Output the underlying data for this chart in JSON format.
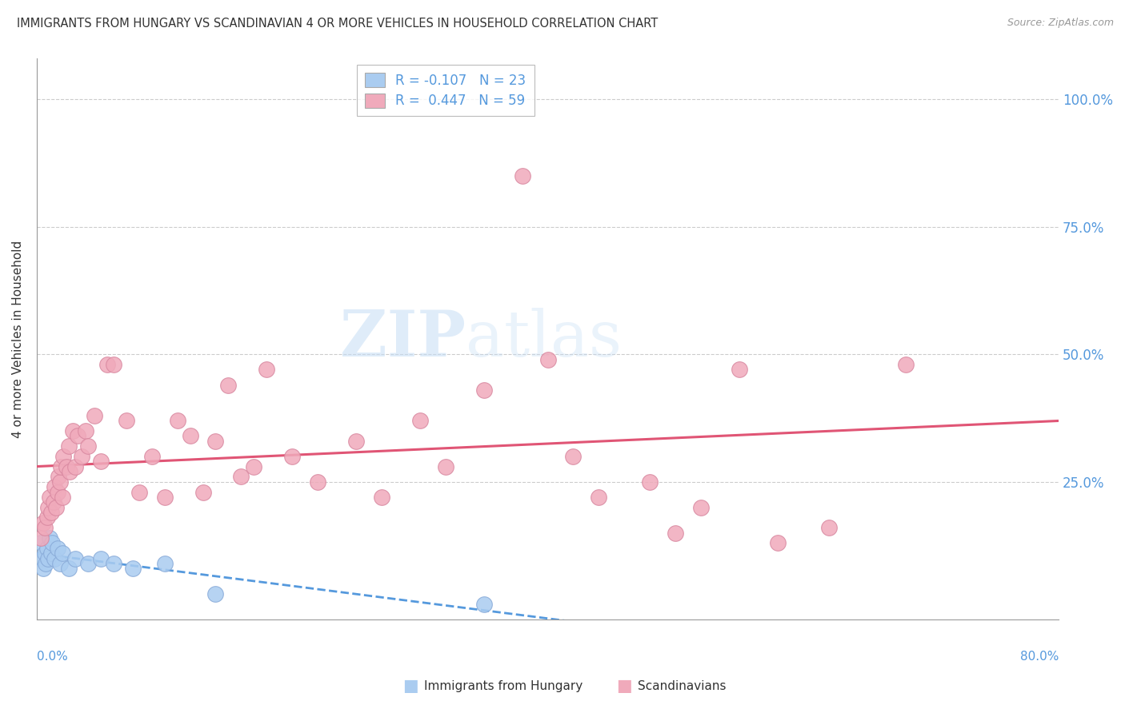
{
  "title": "IMMIGRANTS FROM HUNGARY VS SCANDINAVIAN 4 OR MORE VEHICLES IN HOUSEHOLD CORRELATION CHART",
  "source": "Source: ZipAtlas.com",
  "ylabel": "4 or more Vehicles in Household",
  "xlim": [
    0.0,
    80.0
  ],
  "ylim": [
    -2.0,
    108.0
  ],
  "watermark_zip": "ZIP",
  "watermark_atlas": "atlas",
  "hungary_color": "#aaccf0",
  "hungary_edge": "#88aad8",
  "scand_color": "#f0aabb",
  "scand_edge": "#d888a0",
  "hungary_line_color": "#5599dd",
  "scand_line_color": "#e05575",
  "hungary_x": [
    0.3,
    0.4,
    0.5,
    0.6,
    0.7,
    0.8,
    0.9,
    1.0,
    1.1,
    1.2,
    1.4,
    1.6,
    1.8,
    2.0,
    2.5,
    3.0,
    4.0,
    5.0,
    6.0,
    7.5,
    10.0,
    14.0,
    35.0
  ],
  "hungary_y": [
    13,
    10,
    8,
    11,
    9,
    12,
    10,
    14,
    11,
    13,
    10,
    12,
    9,
    11,
    8,
    10,
    9,
    10,
    9,
    8,
    9,
    3,
    1
  ],
  "scand_x": [
    0.3,
    0.5,
    0.6,
    0.8,
    0.9,
    1.0,
    1.1,
    1.3,
    1.4,
    1.5,
    1.6,
    1.7,
    1.8,
    1.9,
    2.0,
    2.1,
    2.3,
    2.5,
    2.6,
    2.8,
    3.0,
    3.2,
    3.5,
    3.8,
    4.0,
    4.5,
    5.0,
    5.5,
    6.0,
    7.0,
    8.0,
    9.0,
    10.0,
    11.0,
    12.0,
    13.0,
    14.0,
    15.0,
    16.0,
    17.0,
    18.0,
    20.0,
    22.0,
    25.0,
    27.0,
    30.0,
    32.0,
    35.0,
    38.0,
    40.0,
    42.0,
    44.0,
    48.0,
    50.0,
    52.0,
    55.0,
    58.0,
    62.0,
    68.0
  ],
  "scand_y": [
    14,
    17,
    16,
    18,
    20,
    22,
    19,
    21,
    24,
    20,
    23,
    26,
    25,
    28,
    22,
    30,
    28,
    32,
    27,
    35,
    28,
    34,
    30,
    35,
    32,
    38,
    29,
    48,
    48,
    37,
    23,
    30,
    22,
    37,
    34,
    23,
    33,
    44,
    26,
    28,
    47,
    30,
    25,
    33,
    22,
    37,
    28,
    43,
    85,
    49,
    30,
    22,
    25,
    15,
    20,
    47,
    13,
    16,
    48
  ],
  "bg_color": "#ffffff",
  "grid_color": "#cccccc",
  "spine_color": "#999999",
  "right_label_color": "#5599dd",
  "title_color": "#333333",
  "source_color": "#999999"
}
